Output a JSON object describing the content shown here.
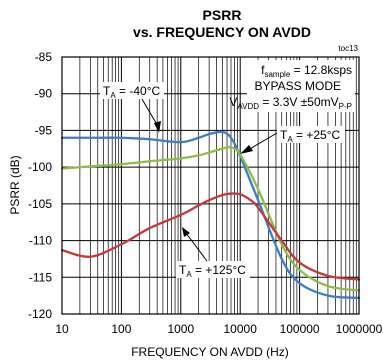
{
  "chart_data": {
    "type": "line",
    "title_line1": "PSRR",
    "title_line2": "vs. FREQUENCY ON AVDD",
    "figure_id": "toc13",
    "xlabel": "FREQUENCY ON AVDD (Hz)",
    "ylabel": "PSRR (dB)",
    "xscale": "log",
    "xlim": [
      10,
      1000000
    ],
    "ylim": [
      -120,
      -85
    ],
    "grid": true,
    "x_ticks": [
      "10",
      "100",
      "1000",
      "10000",
      "100000",
      "1000000"
    ],
    "y_ticks": [
      "-85",
      "-90",
      "-95",
      "-100",
      "-105",
      "-110",
      "-115",
      "-120"
    ],
    "conditions": {
      "fsample_main": "f",
      "fsample_sub": "sample",
      "fsample_value": " = 12.8ksps",
      "mode": "BYPASS MODE",
      "vavdd_main": "V",
      "vavdd_sub": "AVDD",
      "vavdd_value": " = 3.3V ±50mV",
      "vavdd_unit_sub": "P-P"
    },
    "series": [
      {
        "label_main": "T",
        "label_sub": "A",
        "label_value": " = -40°C",
        "color": "#3a7fc8",
        "x": [
          10,
          30,
          100,
          300,
          1000,
          2000,
          3000,
          5000,
          7000,
          10000,
          20000,
          50000,
          100000,
          300000,
          1000000
        ],
        "y": [
          -96.0,
          -96.0,
          -96.0,
          -96.2,
          -96.6,
          -96.0,
          -95.5,
          -95.2,
          -96.0,
          -98.5,
          -104.5,
          -112.5,
          -115.8,
          -117.5,
          -117.8
        ]
      },
      {
        "label_main": "T",
        "label_sub": "A",
        "label_value": " = +25°C",
        "color": "#8cbf45",
        "x": [
          10,
          30,
          100,
          300,
          1000,
          2000,
          3000,
          5000,
          7000,
          10000,
          20000,
          50000,
          100000,
          300000,
          1000000
        ],
        "y": [
          -100.2,
          -99.9,
          -99.6,
          -99.2,
          -98.8,
          -98.4,
          -98.0,
          -97.5,
          -97.3,
          -98.3,
          -103.0,
          -110.5,
          -114.0,
          -116.2,
          -116.8
        ]
      },
      {
        "label_main": "T",
        "label_sub": "A",
        "label_value": " = +125°C",
        "color": "#c8373a",
        "x": [
          10,
          30,
          100,
          300,
          1000,
          2000,
          3000,
          5000,
          7000,
          10000,
          15000,
          20000,
          50000,
          100000,
          300000,
          1000000
        ],
        "y": [
          -111.3,
          -112.2,
          -110.5,
          -108.3,
          -106.5,
          -105.2,
          -104.5,
          -103.8,
          -103.6,
          -103.7,
          -104.5,
          -105.5,
          -110.0,
          -113.0,
          -114.8,
          -115.3
        ]
      }
    ]
  }
}
